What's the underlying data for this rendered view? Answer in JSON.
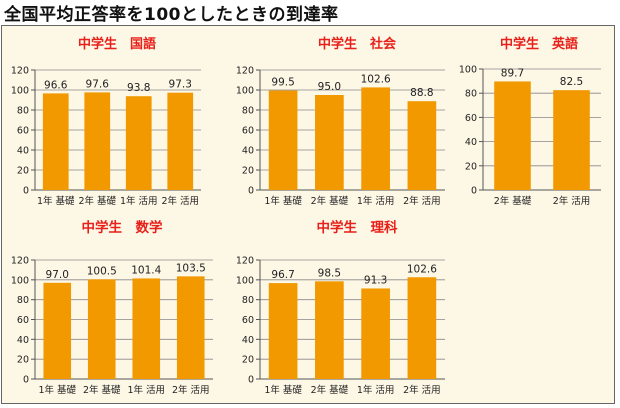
{
  "title": "全国平均正答率を100としたときの到達率",
  "colors": {
    "bar": "#f29900",
    "chart_title": "#e8201a",
    "background": "#fdf7e6"
  },
  "chart_data": [
    {
      "type": "bar",
      "title": "中学生　国語",
      "categories": [
        "1年 基礎",
        "2年 基礎",
        "1年 活用",
        "2年 活用"
      ],
      "values": [
        96.6,
        97.6,
        93.8,
        97.3
      ],
      "labels": [
        "96.6",
        "97.6",
        "93.8",
        "97.3"
      ],
      "yticks": [
        0,
        20,
        40,
        60,
        80,
        100,
        120
      ],
      "ylim": [
        0,
        120
      ],
      "grid": "horizontal"
    },
    {
      "type": "bar",
      "title": "中学生　社会",
      "categories": [
        "1年 基礎",
        "2年 基礎",
        "1年 活用",
        "2年 活用"
      ],
      "values": [
        99.5,
        95.0,
        102.6,
        88.8
      ],
      "labels": [
        "99.5",
        "95.0",
        "102.6",
        "88.8"
      ],
      "yticks": [
        0,
        20,
        40,
        60,
        80,
        100,
        120
      ],
      "ylim": [
        0,
        120
      ],
      "grid": "horizontal"
    },
    {
      "type": "bar",
      "title": "中学生　英語",
      "categories": [
        "2年 基礎",
        "2年 活用"
      ],
      "values": [
        89.7,
        82.5
      ],
      "labels": [
        "89.7",
        "82.5"
      ],
      "yticks": [
        0,
        20,
        40,
        60,
        80,
        100
      ],
      "ylim": [
        0,
        100
      ],
      "grid": "horizontal"
    },
    {
      "type": "bar",
      "title": "中学生　数学",
      "categories": [
        "1年 基礎",
        "2年 基礎",
        "1年 活用",
        "2年 活用"
      ],
      "values": [
        97.0,
        100.5,
        101.4,
        103.5
      ],
      "labels": [
        "97.0",
        "100.5",
        "101.4",
        "103.5"
      ],
      "yticks": [
        0,
        20,
        40,
        60,
        80,
        100,
        120
      ],
      "ylim": [
        0,
        120
      ],
      "grid": "horizontal"
    },
    {
      "type": "bar",
      "title": "中学生　理科",
      "categories": [
        "1年 基礎",
        "2年 基礎",
        "1年 活用",
        "2年 活用"
      ],
      "values": [
        96.7,
        98.5,
        91.3,
        102.6
      ],
      "labels": [
        "96.7",
        "98.5",
        "91.3",
        "102.6"
      ],
      "yticks": [
        0,
        20,
        40,
        60,
        80,
        100,
        120
      ],
      "ylim": [
        0,
        120
      ],
      "grid": "horizontal"
    }
  ]
}
